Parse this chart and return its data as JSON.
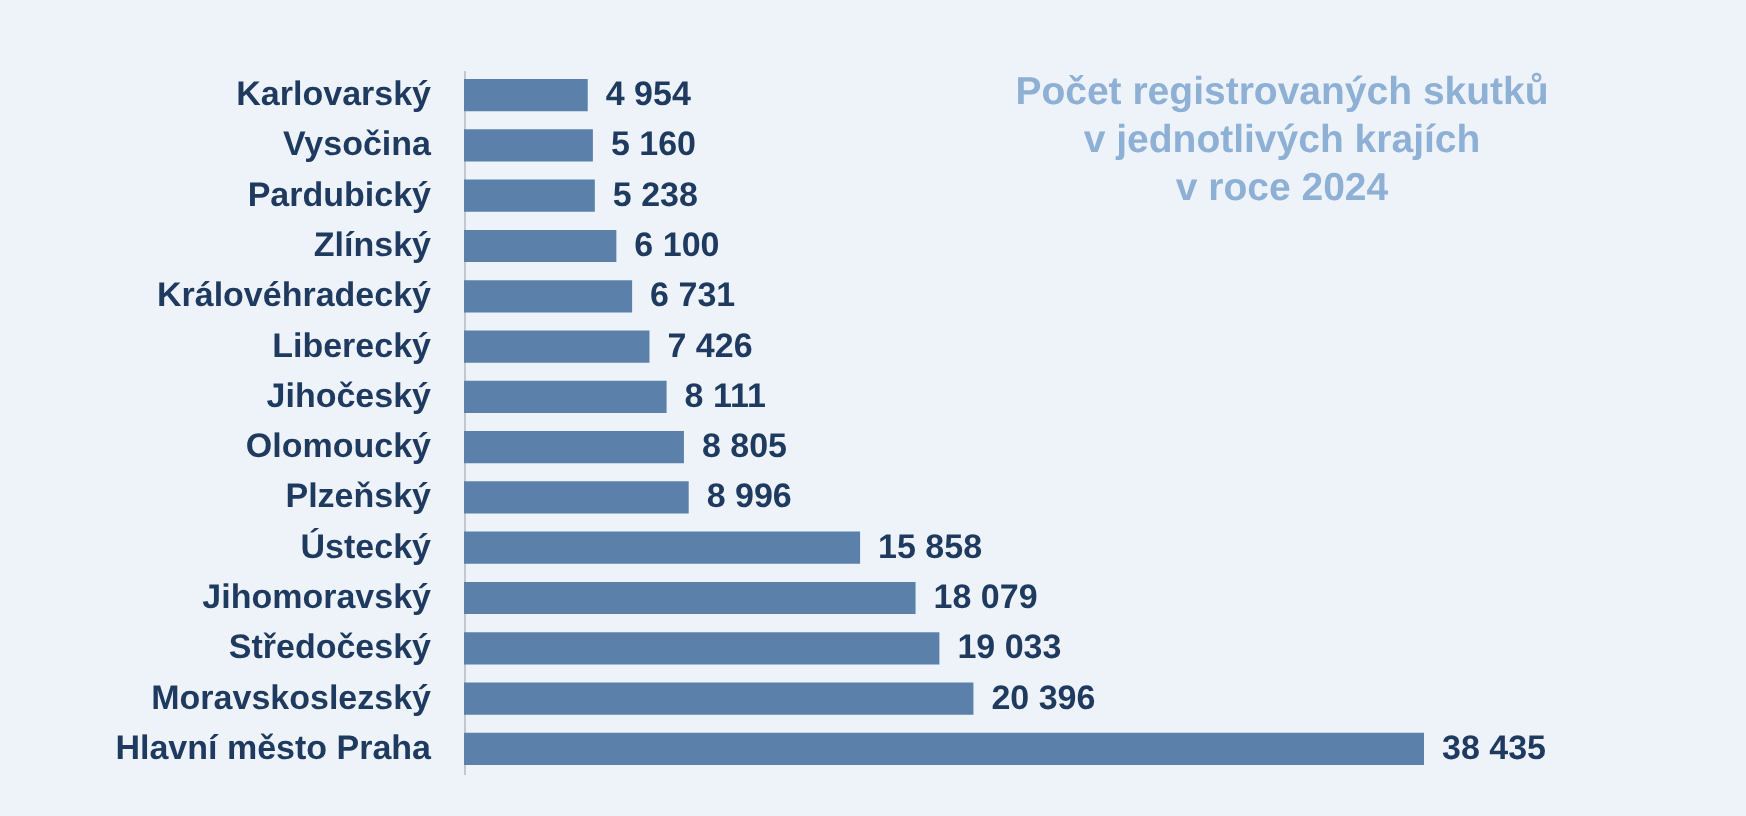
{
  "chart_data": {
    "type": "bar",
    "orientation": "horizontal",
    "title": "Počet registrovaných skutků\nv jednotlivých krajích\nv roce 2024",
    "categories": [
      "Karlovarský",
      "Vysočina",
      "Pardubický",
      "Zlínský",
      "Královéhradecký",
      "Liberecký",
      "Jihočeský",
      "Olomoucký",
      "Plzeňský",
      "Ústecký",
      "Jihomoravský",
      "Středočeský",
      "Moravskoslezský",
      "Hlavní město Praha"
    ],
    "values": [
      4954,
      5160,
      5238,
      6100,
      6731,
      7426,
      8111,
      8805,
      8996,
      15858,
      18079,
      19033,
      20396,
      38435
    ],
    "value_labels": [
      "4 954",
      "5 160",
      "5 238",
      "6 100",
      "6 731",
      "7 426",
      "8 111",
      "8 805",
      "8 996",
      "15 858",
      "18 079",
      "19 033",
      "20 396",
      "38 435"
    ],
    "color": "#5b80aa",
    "tick_labels": "y"
  }
}
